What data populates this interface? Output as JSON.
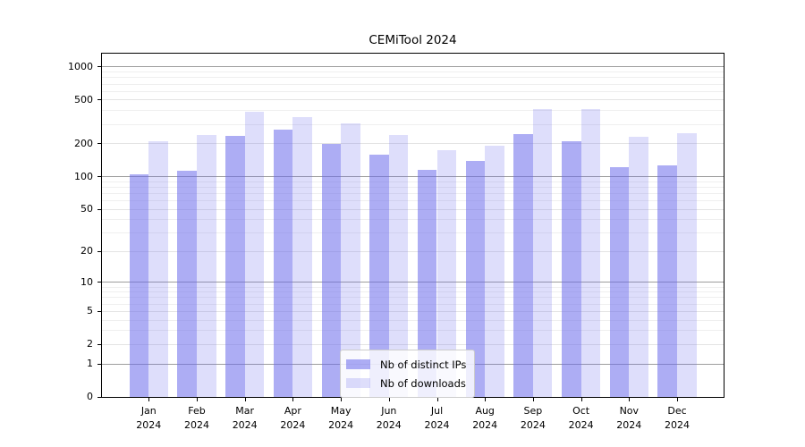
{
  "title": "CEMiTool 2024",
  "chart_data": {
    "type": "bar",
    "title": "CEMiTool 2024",
    "categories": [
      {
        "month": "Jan",
        "year": "2024"
      },
      {
        "month": "Feb",
        "year": "2024"
      },
      {
        "month": "Mar",
        "year": "2024"
      },
      {
        "month": "Apr",
        "year": "2024"
      },
      {
        "month": "May",
        "year": "2024"
      },
      {
        "month": "Jun",
        "year": "2024"
      },
      {
        "month": "Jul",
        "year": "2024"
      },
      {
        "month": "Aug",
        "year": "2024"
      },
      {
        "month": "Sep",
        "year": "2024"
      },
      {
        "month": "Oct",
        "year": "2024"
      },
      {
        "month": "Nov",
        "year": "2024"
      },
      {
        "month": "Dec",
        "year": "2024"
      }
    ],
    "series": [
      {
        "name": "Nb of distinct IPs",
        "values": [
          105,
          113,
          235,
          270,
          199,
          158,
          115,
          140,
          245,
          211,
          121,
          126
        ],
        "color": "rgba(105,105,235,0.55)"
      },
      {
        "name": "Nb of downloads",
        "values": [
          212,
          240,
          395,
          350,
          305,
          240,
          176,
          193,
          415,
          415,
          230,
          248
        ],
        "color": "rgba(105,105,235,0.22)"
      }
    ],
    "yscale": "log10(value+1)",
    "yticks": [
      0,
      1,
      2,
      5,
      10,
      20,
      50,
      100,
      200,
      500,
      1000
    ],
    "ylim": [
      0,
      1349
    ],
    "grid": true,
    "legend_position": "inside-bottom-center"
  },
  "colors": {
    "bar_dark": "rgba(105,105,235,0.55)",
    "bar_light": "rgba(105,105,235,0.22)",
    "grid_minor": "#efefef",
    "grid_labeled": "#e4e4e4",
    "grid_power10": "#9e9e9e",
    "axis": "#000000"
  }
}
